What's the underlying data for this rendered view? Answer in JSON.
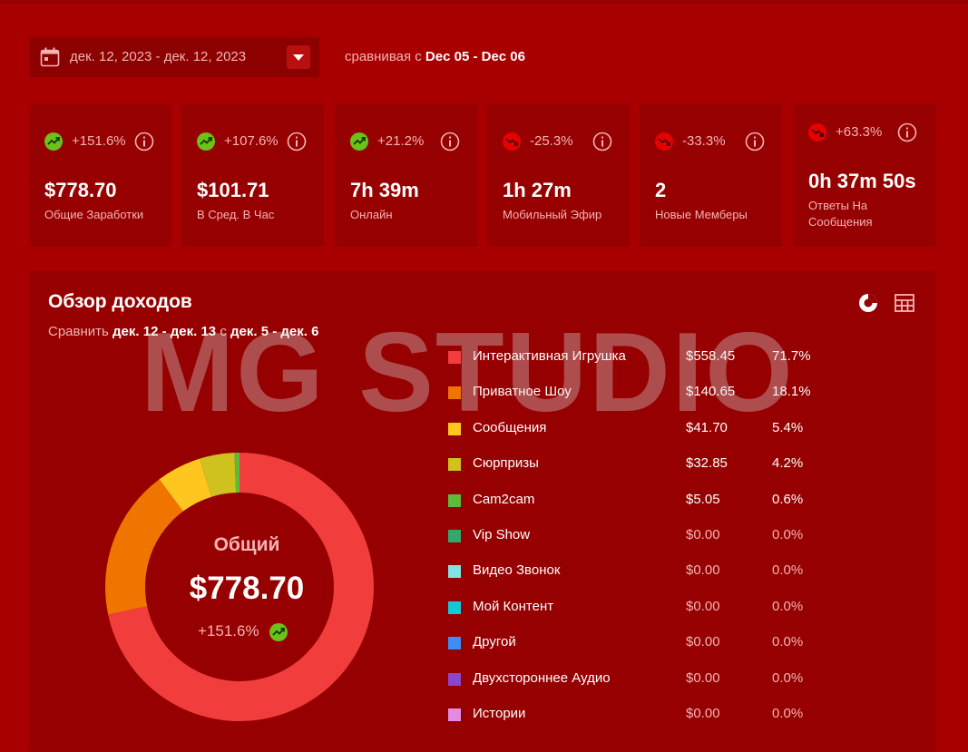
{
  "filters": {
    "date_range": "дек. 12, 2023 - дек. 12, 2023",
    "compare_prefix": "сравнивая с",
    "compare_range": "Dec 05 - Dec 06"
  },
  "stats": [
    {
      "change": "+151.6%",
      "trend": "up",
      "value": "$778.70",
      "label": "Общие Заработки"
    },
    {
      "change": "+107.6%",
      "trend": "up",
      "value": "$101.71",
      "label": "В Сред. В Час"
    },
    {
      "change": "+21.2%",
      "trend": "up",
      "value": "7h 39m",
      "label": "Онлайн"
    },
    {
      "change": "-25.3%",
      "trend": "down",
      "value": "1h 27m",
      "label": "Мобильный Эфир"
    },
    {
      "change": "-33.3%",
      "trend": "down",
      "value": "2",
      "label": "Новые Мемберы"
    },
    {
      "change": "+63.3%",
      "trend": "down",
      "value": "0h 37m 50s",
      "label_line1": "Ответы На",
      "label_line2": "Сообщения"
    }
  ],
  "overview": {
    "title": "Обзор доходов",
    "compare_word": "Сравнить",
    "range_a": "дек. 12 - дек. 13",
    "with_word": "с",
    "range_b": "дек. 5 - дек. 6",
    "total_label": "Общий",
    "total_value": "$778.70",
    "total_change": "+151.6%"
  },
  "chart_data": {
    "type": "pie",
    "categories": [
      "Интерактивная Игрушка",
      "Приватное Шоу",
      "Сообщения",
      "Сюрпризы",
      "Cam2cam",
      "Vip Show",
      "Видео Звонок",
      "Мой Контент",
      "Другой",
      "Двухстороннее Аудио",
      "Истории"
    ],
    "amounts": [
      "$558.45",
      "$140.65",
      "$41.70",
      "$32.85",
      "$5.05",
      "$0.00",
      "$0.00",
      "$0.00",
      "$0.00",
      "$0.00",
      "$0.00"
    ],
    "percents": [
      "71.7%",
      "18.1%",
      "5.4%",
      "4.2%",
      "0.6%",
      "0.0%",
      "0.0%",
      "0.0%",
      "0.0%",
      "0.0%",
      "0.0%"
    ],
    "values": [
      71.7,
      18.1,
      5.4,
      4.2,
      0.6,
      0,
      0,
      0,
      0,
      0,
      0
    ],
    "colors": [
      "#f23d3d",
      "#f07400",
      "#ffc61f",
      "#cfc21f",
      "#5fba3a",
      "#33a86b",
      "#7fe4e4",
      "#12c9d9",
      "#3d8ef0",
      "#8d45d0",
      "#e48be0"
    ],
    "legend_position": "right"
  },
  "watermark": "MG STUDIO",
  "colors": {
    "background": "#a80000",
    "card": "#960000",
    "trend_up": "#6cc11a",
    "trend_down": "#e60000"
  }
}
